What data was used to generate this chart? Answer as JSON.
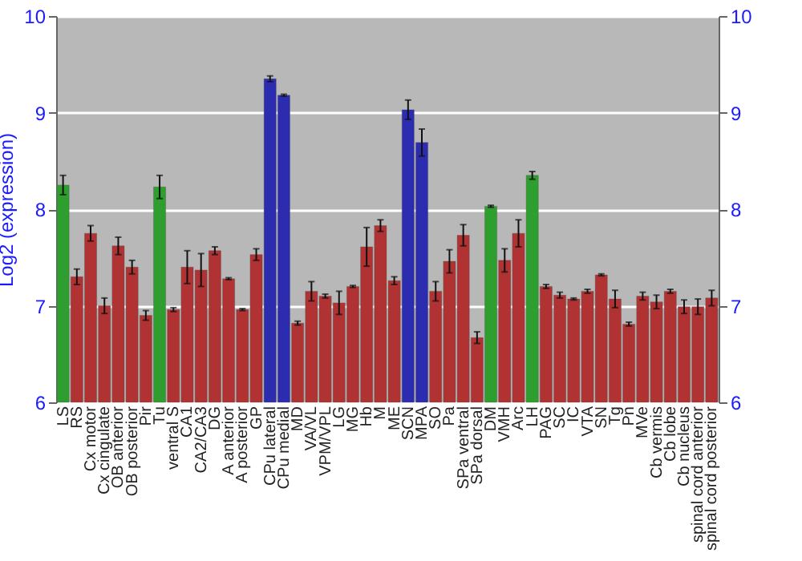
{
  "chart_data": {
    "type": "bar",
    "ylabel": "Log2 (expression)",
    "categories": [
      "LS",
      "RS",
      "Cx motor",
      "Cx cingulate",
      "OB anterior",
      "OB posterior",
      "Pir",
      "Tu",
      "ventral S",
      "CA1",
      "CA2/CA3",
      "DG",
      "A anterior",
      "A posterior",
      "GP",
      "CPu lateral",
      "CPu medial",
      "MD",
      "VA/VL",
      "VPM/VPL",
      "LG",
      "MG",
      "Hb",
      "M",
      "ME",
      "SCN",
      "MPA",
      "SO",
      "Pa",
      "SPa ventral",
      "SPa dorsal",
      "DM",
      "VMH",
      "Arc",
      "LH",
      "PAG",
      "SC",
      "IC",
      "VTA",
      "SN",
      "Tg",
      "Pn",
      "MVe",
      "Cb vermis",
      "Cb lobe",
      "Cb nucleus",
      "spinal cord anterior",
      "spinal cord posterior"
    ],
    "values": [
      8.25,
      7.3,
      7.75,
      7.0,
      7.62,
      7.4,
      6.9,
      8.23,
      6.96,
      7.4,
      7.37,
      7.57,
      7.28,
      6.96,
      7.53,
      9.35,
      9.18,
      6.82,
      7.15,
      7.1,
      7.03,
      7.2,
      7.61,
      7.83,
      7.26,
      9.03,
      8.69,
      7.15,
      7.46,
      7.73,
      6.67,
      8.03,
      7.47,
      7.75,
      8.35,
      7.2,
      7.11,
      7.07,
      7.15,
      7.32,
      7.07,
      6.81,
      7.1,
      7.04,
      7.15,
      6.99,
      6.99,
      7.08
    ],
    "errors": [
      0.1,
      0.08,
      0.08,
      0.08,
      0.09,
      0.07,
      0.05,
      0.12,
      0.02,
      0.17,
      0.17,
      0.04,
      0.01,
      0.01,
      0.06,
      0.03,
      0.01,
      0.02,
      0.1,
      0.02,
      0.12,
      0.01,
      0.2,
      0.06,
      0.04,
      0.1,
      0.14,
      0.1,
      0.12,
      0.11,
      0.06,
      0.01,
      0.12,
      0.14,
      0.04,
      0.02,
      0.03,
      0.01,
      0.02,
      0.01,
      0.09,
      0.02,
      0.04,
      0.07,
      0.02,
      0.07,
      0.08,
      0.08
    ],
    "colors": [
      "#2e9e2e",
      "#b03232",
      "#b03232",
      "#b03232",
      "#b03232",
      "#b03232",
      "#b03232",
      "#2e9e2e",
      "#b03232",
      "#b03232",
      "#b03232",
      "#b03232",
      "#b03232",
      "#b03232",
      "#b03232",
      "#2c2cb0",
      "#2c2cb0",
      "#b03232",
      "#b03232",
      "#b03232",
      "#b03232",
      "#b03232",
      "#b03232",
      "#b03232",
      "#b03232",
      "#2c2cb0",
      "#2c2cb0",
      "#b03232",
      "#b03232",
      "#b03232",
      "#b03232",
      "#2e9e2e",
      "#b03232",
      "#b03232",
      "#2e9e2e",
      "#b03232",
      "#b03232",
      "#b03232",
      "#b03232",
      "#b03232",
      "#b03232",
      "#b03232",
      "#b03232",
      "#b03232",
      "#b03232",
      "#b03232",
      "#b03232",
      "#b03232"
    ],
    "ylim": [
      6,
      10
    ],
    "yticks": [
      6,
      7,
      8,
      9,
      10
    ],
    "y2lim": [
      6,
      10
    ],
    "y2ticks": [
      6,
      7,
      8,
      9,
      10
    ],
    "grid": "y"
  }
}
